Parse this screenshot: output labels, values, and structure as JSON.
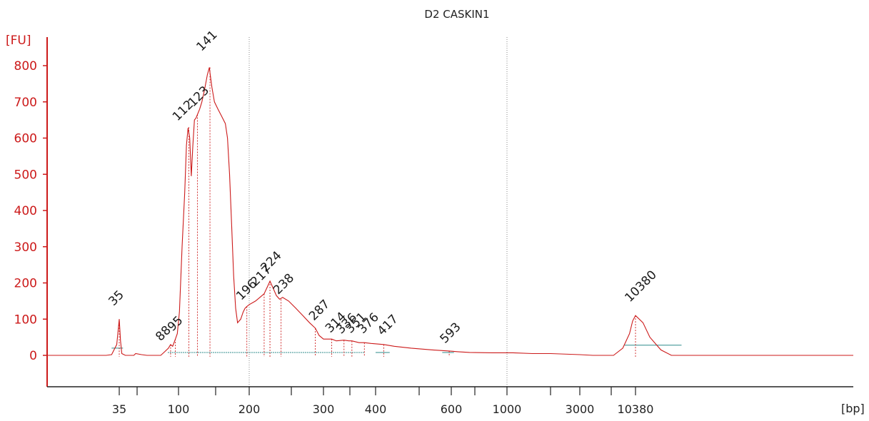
{
  "chart_data": {
    "type": "line",
    "title": "D2 CASKIN1",
    "ylabel": "[FU]",
    "xlabel": "[bp]",
    "ylim": [
      -75,
      840
    ],
    "yticks": [
      0,
      100,
      200,
      300,
      400,
      500,
      600,
      700,
      800
    ],
    "xticks": [
      "35",
      "100",
      "200",
      "300",
      "400",
      "600",
      "1000",
      "3000",
      "10380"
    ],
    "colors": {
      "trace": "#cc1a1a",
      "axis": "#cc1a1a",
      "marker_lower": "#1a8a1a",
      "marker_upper": "#9933ff",
      "baseline": "#2e8b8b"
    },
    "peaks": [
      {
        "label": "35",
        "x_bp": 35,
        "fu": 100,
        "type": "marker-lower"
      },
      {
        "label": "88",
        "x_bp": 88,
        "fu": 30,
        "type": "peak"
      },
      {
        "label": "95",
        "x_bp": 95,
        "fu": 45,
        "type": "peak"
      },
      {
        "label": "112",
        "x_bp": 112,
        "fu": 630,
        "type": "peak"
      },
      {
        "label": "123",
        "x_bp": 123,
        "fu": 665,
        "type": "peak"
      },
      {
        "label": "141",
        "x_bp": 141,
        "fu": 795,
        "type": "peak"
      },
      {
        "label": "196",
        "x_bp": 196,
        "fu": 135,
        "type": "peak"
      },
      {
        "label": "217",
        "x_bp": 217,
        "fu": 170,
        "type": "peak"
      },
      {
        "label": "224",
        "x_bp": 224,
        "fu": 205,
        "type": "peak"
      },
      {
        "label": "238",
        "x_bp": 238,
        "fu": 155,
        "type": "peak"
      },
      {
        "label": "287",
        "x_bp": 287,
        "fu": 75,
        "type": "peak"
      },
      {
        "label": "314",
        "x_bp": 314,
        "fu": 45,
        "type": "peak"
      },
      {
        "label": "336",
        "x_bp": 336,
        "fu": 42,
        "type": "peak"
      },
      {
        "label": "351",
        "x_bp": 351,
        "fu": 40,
        "type": "peak"
      },
      {
        "label": "376",
        "x_bp": 376,
        "fu": 35,
        "type": "peak"
      },
      {
        "label": "417",
        "x_bp": 417,
        "fu": 30,
        "type": "peak"
      },
      {
        "label": "593",
        "x_bp": 593,
        "fu": 12,
        "type": "peak"
      },
      {
        "label": "10380",
        "x_bp": 10380,
        "fu": 110,
        "type": "marker-upper"
      }
    ],
    "trace": [
      [
        15,
        0
      ],
      [
        30,
        0
      ],
      [
        32,
        2
      ],
      [
        34,
        30
      ],
      [
        35,
        100
      ],
      [
        36,
        40
      ],
      [
        37,
        5
      ],
      [
        40,
        0
      ],
      [
        48,
        0
      ],
      [
        50,
        5
      ],
      [
        55,
        2
      ],
      [
        60,
        0
      ],
      [
        75,
        0
      ],
      [
        80,
        10
      ],
      [
        85,
        20
      ],
      [
        88,
        30
      ],
      [
        91,
        25
      ],
      [
        95,
        45
      ],
      [
        98,
        60
      ],
      [
        101,
        120
      ],
      [
        104,
        300
      ],
      [
        107,
        450
      ],
      [
        109,
        580
      ],
      [
        111,
        628
      ],
      [
        113,
        600
      ],
      [
        115,
        495
      ],
      [
        117,
        580
      ],
      [
        119,
        650
      ],
      [
        121,
        655
      ],
      [
        123,
        665
      ],
      [
        126,
        680
      ],
      [
        129,
        700
      ],
      [
        133,
        735
      ],
      [
        137,
        775
      ],
      [
        140,
        795
      ],
      [
        141,
        780
      ],
      [
        144,
        740
      ],
      [
        148,
        700
      ],
      [
        153,
        680
      ],
      [
        158,
        660
      ],
      [
        163,
        640
      ],
      [
        166,
        600
      ],
      [
        169,
        500
      ],
      [
        172,
        360
      ],
      [
        175,
        220
      ],
      [
        178,
        130
      ],
      [
        181,
        90
      ],
      [
        186,
        100
      ],
      [
        190,
        120
      ],
      [
        193,
        130
      ],
      [
        196,
        135
      ],
      [
        200,
        140
      ],
      [
        207,
        150
      ],
      [
        212,
        160
      ],
      [
        217,
        170
      ],
      [
        221,
        190
      ],
      [
        224,
        205
      ],
      [
        228,
        185
      ],
      [
        232,
        165
      ],
      [
        236,
        155
      ],
      [
        240,
        160
      ],
      [
        248,
        150
      ],
      [
        258,
        130
      ],
      [
        268,
        110
      ],
      [
        278,
        90
      ],
      [
        287,
        75
      ],
      [
        293,
        55
      ],
      [
        300,
        45
      ],
      [
        314,
        45
      ],
      [
        322,
        40
      ],
      [
        336,
        42
      ],
      [
        345,
        40
      ],
      [
        351,
        40
      ],
      [
        365,
        35
      ],
      [
        376,
        35
      ],
      [
        390,
        33
      ],
      [
        417,
        30
      ],
      [
        440,
        25
      ],
      [
        480,
        20
      ],
      [
        540,
        15
      ],
      [
        593,
        12
      ],
      [
        650,
        10
      ],
      [
        750,
        8
      ],
      [
        900,
        7
      ],
      [
        1100,
        7
      ],
      [
        1500,
        5
      ],
      [
        2000,
        5
      ],
      [
        3000,
        2
      ],
      [
        4000,
        0
      ],
      [
        5000,
        0
      ],
      [
        7000,
        0
      ],
      [
        8800,
        20
      ],
      [
        9600,
        60
      ],
      [
        10000,
        95
      ],
      [
        10380,
        110
      ],
      [
        10700,
        90
      ],
      [
        11000,
        50
      ],
      [
        11500,
        15
      ],
      [
        12000,
        0
      ],
      [
        15000,
        0
      ],
      [
        18000,
        0
      ],
      [
        25000,
        0
      ]
    ]
  }
}
